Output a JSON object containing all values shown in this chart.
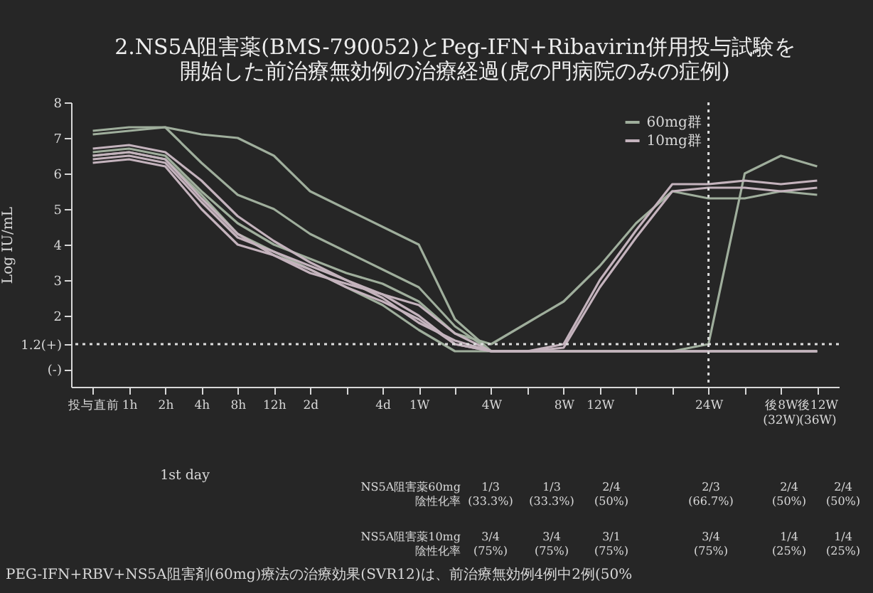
{
  "chart_data": {
    "type": "line",
    "title": [
      "2.NS5A阻害薬(BMS-790052)とPeg-IFN+Ribavirin併用投与試験を",
      "開始した前治療無効例の治療経過(虎の門病院のみの症例)"
    ],
    "ylabel": "Log IU/mL",
    "categories": [
      "投与直前",
      "1h",
      "2h",
      "4h",
      "8h",
      "12h",
      "2d",
      null,
      "4d",
      "1W",
      null,
      "4W",
      null,
      "8W",
      "12W",
      null,
      null,
      "24W",
      null,
      "後8W (32W)",
      "後12W (36W)"
    ],
    "ylim": [
      0,
      8
    ],
    "yticks": [
      {
        "value": 0.5,
        "label": "(-)"
      },
      {
        "value": 1.2,
        "label": "1.2(+)"
      },
      2,
      3,
      4,
      5,
      6,
      7,
      8
    ],
    "series": [
      {
        "name": "60mg群",
        "color": "#9fae9c",
        "values": [
          7.2,
          7.3,
          7.3,
          7.1,
          7.0,
          6.5,
          5.5,
          5.0,
          4.5,
          4.0,
          1.9,
          1.0,
          1.0,
          1.0,
          1.0,
          1.0,
          1.0,
          1.0,
          1.0,
          1.0,
          1.0
        ]
      },
      {
        "color": "#9fae9c",
        "values": [
          7.1,
          7.2,
          7.3,
          6.3,
          5.4,
          5.0,
          4.3,
          3.8,
          3.3,
          2.8,
          1.7,
          1.0,
          1.0,
          1.0,
          1.0,
          1.0,
          1.0,
          1.0,
          1.0,
          1.0,
          1.0
        ]
      },
      {
        "color": "#9fae9c",
        "values": [
          6.6,
          6.7,
          6.5,
          5.5,
          4.6,
          4.0,
          3.6,
          3.2,
          2.9,
          2.4,
          1.5,
          1.2,
          1.8,
          2.4,
          3.4,
          4.6,
          5.5,
          5.3,
          5.3,
          5.5,
          5.4
        ]
      },
      {
        "color": "#9fae9c",
        "values": [
          6.5,
          6.6,
          6.4,
          5.4,
          4.3,
          3.8,
          3.3,
          2.8,
          2.3,
          1.6,
          1.0,
          1.0,
          1.0,
          1.0,
          1.0,
          1.0,
          1.0,
          1.2,
          6.0,
          6.5,
          6.2
        ]
      },
      {
        "name": "10mg群",
        "color": "#c4b3bd",
        "values": [
          6.4,
          6.5,
          6.3,
          5.2,
          4.2,
          3.8,
          3.4,
          3.0,
          2.6,
          2.0,
          1.2,
          1.0,
          1.0,
          1.2,
          3.0,
          4.4,
          5.7,
          5.7,
          5.8,
          5.7,
          5.8
        ]
      },
      {
        "color": "#c4b3bd",
        "values": [
          6.7,
          6.8,
          6.6,
          5.8,
          4.8,
          4.1,
          3.5,
          3.0,
          2.5,
          1.8,
          1.3,
          1.0,
          1.0,
          1.1,
          2.8,
          4.2,
          5.5,
          5.6,
          5.6,
          5.5,
          5.6
        ]
      },
      {
        "color": "#c4b3bd",
        "values": [
          6.3,
          6.4,
          6.2,
          5.0,
          4.0,
          3.7,
          3.3,
          2.8,
          2.4,
          1.9,
          1.2,
          1.0,
          1.0,
          1.0,
          1.0,
          1.0,
          1.0,
          1.0,
          1.0,
          1.0,
          1.0
        ]
      },
      {
        "color": "#c4b3bd",
        "values": [
          6.5,
          6.6,
          6.4,
          5.3,
          4.3,
          3.7,
          3.2,
          2.9,
          2.6,
          2.3,
          1.5,
          1.0,
          1.0,
          1.0,
          1.0,
          1.0,
          1.0,
          1.0,
          1.0,
          1.0,
          1.0
        ]
      }
    ],
    "ref_lines": [
      {
        "axis": "y",
        "value": 1.2,
        "line_style": "dotted",
        "color": "#dddddd"
      },
      {
        "axis": "x",
        "value": "24W",
        "line_style": "dotted",
        "color": "#dddddd"
      }
    ],
    "legend": "top right",
    "annotations": [
      "1st day",
      "NS5A阻害薬60mg 陰性化率",
      "NS5A阻害薬10mg 陰性化率",
      "PEG-IFN+RBV+NS5A阻害剤(60mg)療法の治療効果(SVR12)は、前治療無効例4例中2例(50%",
      "1/3 (33.3%)",
      "1/3 (33.3%)",
      "2/4 (50%)",
      "2/3 (66.7%)",
      "2/4 (50%)",
      "2/4 (50%)",
      "3/4 (75%)",
      "3/4 (75%)",
      "3/1 (75%)",
      "3/4 (75%)",
      "1/4 (25%)",
      "1/4 (25%)"
    ]
  }
}
